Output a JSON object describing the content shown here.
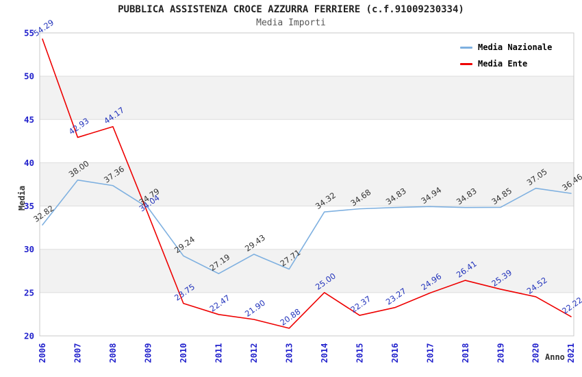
{
  "chart_data": {
    "type": "line",
    "title": "PUBBLICA ASSISTENZA CROCE AZZURRA FERRIERE (c.f.91009230334)",
    "subtitle": "Media Importi",
    "xlabel": "Anno",
    "ylabel": "Media",
    "x": [
      "2006",
      "2007",
      "2008",
      "2009",
      "2010",
      "2011",
      "2012",
      "2013",
      "2014",
      "2015",
      "2016",
      "2017",
      "2018",
      "2019",
      "2020",
      "2021"
    ],
    "ylim": [
      20,
      55
    ],
    "yticks": [
      20,
      25,
      30,
      35,
      40,
      45,
      50,
      55
    ],
    "grid": "horizontal-bands",
    "band_ranges": [
      [
        25,
        30
      ],
      [
        35,
        40
      ],
      [
        45,
        50
      ]
    ],
    "legend_position": "top-right",
    "point_label_decimals": 2,
    "series": [
      {
        "name": "Media Nazionale",
        "color": "#7EB0E0",
        "label_color": "#333333",
        "values": [
          32.82,
          38.0,
          37.36,
          34.79,
          29.24,
          27.19,
          29.43,
          27.71,
          34.32,
          34.68,
          34.83,
          34.94,
          34.83,
          34.85,
          37.05,
          36.46
        ]
      },
      {
        "name": "Media Ente",
        "color": "#EE0000",
        "label_color": "#2233BB",
        "values": [
          54.29,
          42.93,
          44.17,
          34.04,
          23.75,
          22.47,
          21.9,
          20.88,
          25.0,
          22.37,
          23.27,
          24.96,
          26.41,
          25.39,
          24.52,
          22.22
        ]
      }
    ],
    "colors": {
      "axis_tick": "#2222CC",
      "band_fill": "#F2F2F2",
      "gridline": "#DDDDDD",
      "plot_border": "#C8C8C8",
      "title": "#222222",
      "subtitle": "#555555",
      "legend_text": "#000000",
      "axis_title": "#333333",
      "background": "#FFFFFF"
    }
  }
}
